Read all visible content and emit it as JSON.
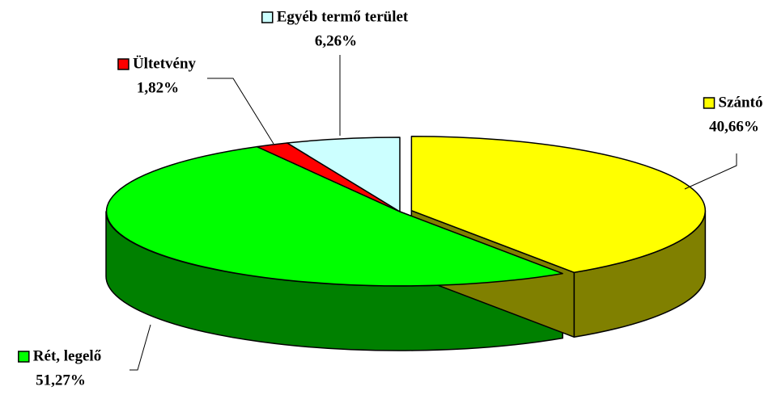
{
  "chart_data": {
    "type": "pie",
    "categories": [
      "Szántó",
      "Rét, legelő",
      "Ültetvény",
      "Egyéb termő terület"
    ],
    "values": [
      40.66,
      51.27,
      1.82,
      6.26
    ],
    "value_labels": [
      "40,66%",
      "51,27%",
      "1,82%",
      "6,26%"
    ],
    "colors": [
      "#ffff00",
      "#00ff00",
      "#ff0000",
      "#ccffff"
    ]
  }
}
